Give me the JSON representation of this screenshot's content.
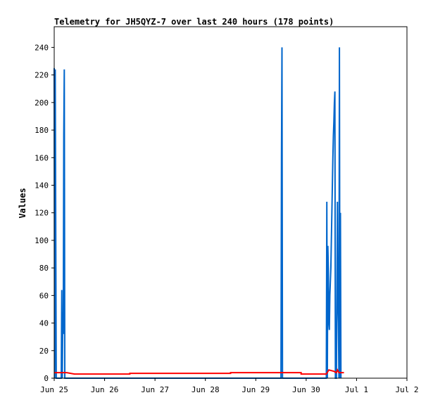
{
  "chart_data": {
    "type": "line",
    "title": "Telemetry for JH5QYZ-7 over last 240 hours (178 points)",
    "xlabel": "",
    "ylabel": "Values",
    "x_ticks": [
      "Jun 25",
      "Jun 26",
      "Jun 27",
      "Jun 28",
      "Jun 29",
      "Jun 30",
      "Jul 1",
      "Jul 2"
    ],
    "xlim": [
      0,
      7
    ],
    "ylim": [
      0,
      255
    ],
    "y_ticks": [
      0,
      20,
      40,
      60,
      80,
      100,
      120,
      140,
      160,
      180,
      200,
      220,
      240
    ],
    "grid": false,
    "series": [
      {
        "color": "#0066cc",
        "points": [
          [
            0.0,
            225
          ],
          [
            0.01,
            0
          ],
          [
            0.02,
            224
          ],
          [
            0.04,
            0
          ],
          [
            0.14,
            0
          ],
          [
            0.15,
            64
          ],
          [
            0.16,
            0
          ],
          [
            0.17,
            48
          ],
          [
            0.18,
            32
          ],
          [
            0.19,
            177
          ],
          [
            0.2,
            224
          ],
          [
            0.21,
            0
          ],
          [
            4.5,
            0
          ],
          [
            4.51,
            160
          ],
          [
            4.52,
            240
          ],
          [
            4.53,
            0
          ],
          [
            5.4,
            0
          ],
          [
            5.41,
            128
          ],
          [
            5.42,
            0
          ],
          [
            5.43,
            96
          ],
          [
            5.44,
            80
          ],
          [
            5.45,
            40
          ],
          [
            5.46,
            35
          ],
          [
            5.47,
            60
          ],
          [
            5.48,
            70
          ],
          [
            5.49,
            80
          ],
          [
            5.5,
            100
          ],
          [
            5.51,
            120
          ],
          [
            5.52,
            140
          ],
          [
            5.53,
            160
          ],
          [
            5.54,
            176
          ],
          [
            5.55,
            186
          ],
          [
            5.56,
            200
          ],
          [
            5.57,
            208
          ],
          [
            5.58,
            0
          ],
          [
            5.6,
            0
          ],
          [
            5.61,
            64
          ],
          [
            5.62,
            128
          ],
          [
            5.63,
            56
          ],
          [
            5.64,
            40
          ],
          [
            5.65,
            0
          ],
          [
            5.66,
            240
          ],
          [
            5.67,
            0
          ],
          [
            5.68,
            120
          ],
          [
            5.69,
            0
          ]
        ]
      },
      {
        "color": "#ff0000",
        "points": [
          [
            0.0,
            4
          ],
          [
            0.25,
            4
          ],
          [
            0.4,
            3
          ],
          [
            1.5,
            3
          ],
          [
            1.5,
            3.5
          ],
          [
            3.5,
            3.5
          ],
          [
            3.5,
            4
          ],
          [
            4.9,
            4
          ],
          [
            4.9,
            3
          ],
          [
            5.4,
            3
          ],
          [
            5.45,
            6
          ],
          [
            5.55,
            5
          ],
          [
            5.6,
            4
          ],
          [
            5.62,
            6
          ],
          [
            5.65,
            4
          ],
          [
            5.75,
            4
          ]
        ]
      }
    ]
  }
}
